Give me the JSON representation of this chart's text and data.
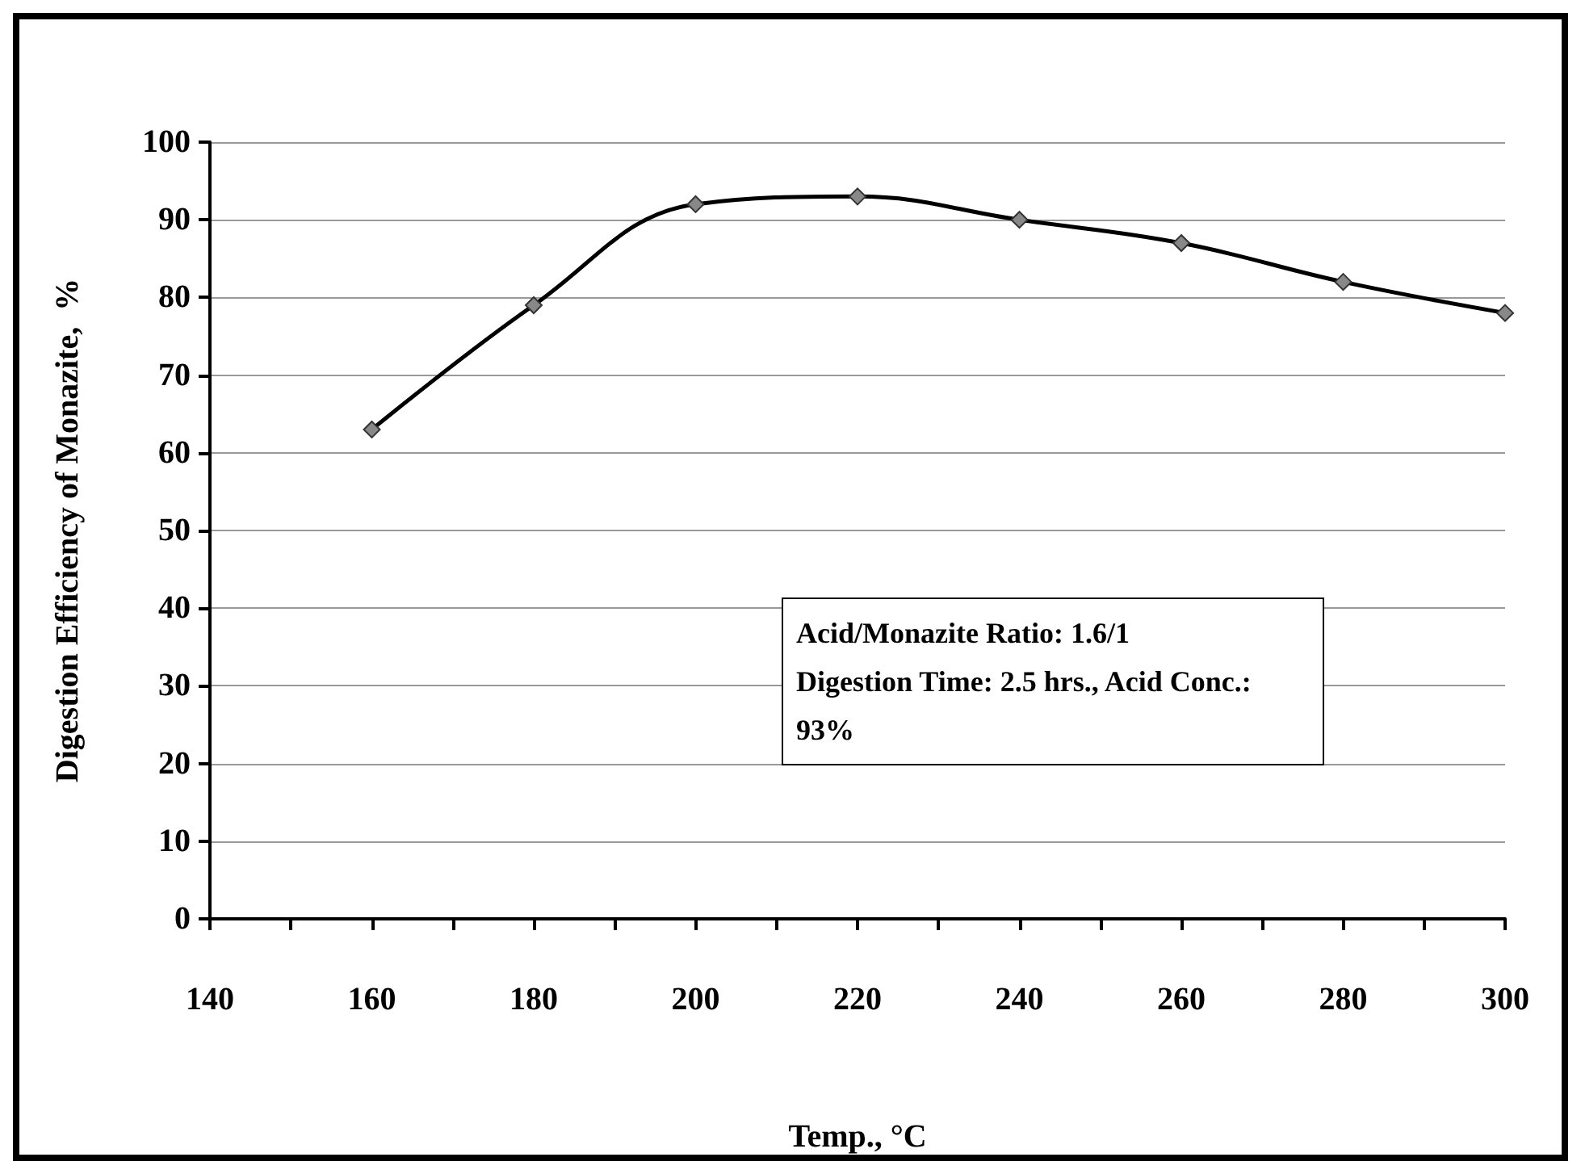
{
  "chart_data": {
    "type": "line",
    "xlabel": "Temp., °C",
    "ylabel": "Digestion Efficiency of Monazite,  %",
    "x": [
      160,
      180,
      200,
      220,
      240,
      260,
      280,
      300
    ],
    "series": [
      {
        "color": "#000000",
        "values": [
          63,
          79,
          92,
          93,
          90,
          87,
          82,
          78
        ]
      }
    ],
    "xlim": [
      140,
      300
    ],
    "xticks": [
      140,
      {
        "value": 150,
        "label": null
      },
      160,
      {
        "value": 170,
        "label": null
      },
      180,
      {
        "value": 190,
        "label": null
      },
      200,
      {
        "value": 210,
        "label": null
      },
      220,
      {
        "value": 230,
        "label": null
      },
      240,
      {
        "value": 250,
        "label": null
      },
      260,
      {
        "value": 270,
        "label": null
      },
      280,
      {
        "value": 290,
        "label": null
      },
      300
    ],
    "ylim": [
      0,
      100
    ],
    "yticks": [
      0,
      10,
      20,
      30,
      40,
      50,
      60,
      70,
      80,
      90,
      100
    ],
    "grid": "y",
    "marker": "diamond",
    "line_style": "solid",
    "annotations": [
      "Acid/Monazite Ratio: 1.6/1",
      "Digestion Time: 2.5 hrs., Acid Conc.: 93%"
    ]
  }
}
